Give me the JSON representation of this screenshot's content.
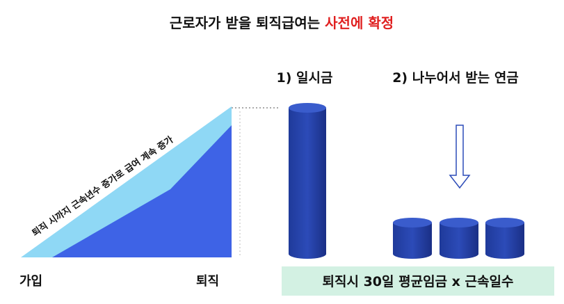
{
  "title": {
    "main": "근로자가 받을 퇴직급여는",
    "highlight": "사전에 확정"
  },
  "left": {
    "slope_label": "퇴직 시까지 근속년수 증가로 급여 계속 증가",
    "start_label": "가입",
    "end_label": "퇴직"
  },
  "options": {
    "lump_sum": "1) 일시금",
    "annuity": "2) 나누어서 받는 연금"
  },
  "formula": "퇴직시 30일 평균임금 x 근속일수"
}
